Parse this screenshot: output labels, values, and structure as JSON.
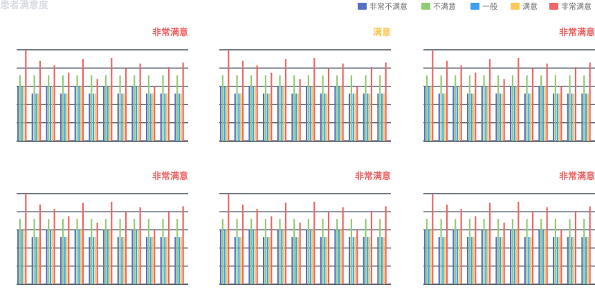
{
  "chart_title": "患者满意度",
  "colors": {
    "grid": "#1f2f3f",
    "series": [
      "#5470c6",
      "#91cc75",
      "#3ba0f0",
      "#fac858",
      "#ee6666"
    ]
  },
  "chart_data": {
    "type": "bar",
    "title": "患者满意度",
    "legend_position": "top-right",
    "grid": true,
    "series": [
      {
        "name": "非常不满意",
        "values": [
          60,
          52,
          60,
          52,
          60,
          52,
          60,
          52,
          60,
          52,
          52,
          52
        ]
      },
      {
        "name": "不满意",
        "values": [
          72,
          72,
          72,
          72,
          72,
          72,
          72,
          72,
          72,
          72,
          72,
          72
        ]
      },
      {
        "name": "一般",
        "values": [
          60,
          52,
          60,
          52,
          60,
          52,
          60,
          52,
          60,
          52,
          52,
          52
        ]
      },
      {
        "name": "满意",
        "values": [
          60,
          52,
          60,
          52,
          60,
          52,
          60,
          52,
          60,
          52,
          52,
          52
        ]
      },
      {
        "name": "非常满意",
        "values": [
          100,
          88,
          83,
          75,
          90,
          68,
          91,
          80,
          85,
          60,
          81,
          86
        ]
      }
    ],
    "panels": [
      {
        "label": "非常满意",
        "label_color": "#ee6666"
      },
      {
        "label": "满意",
        "label_color": "#fac858"
      },
      {
        "label": "非常满意",
        "label_color": "#ee6666"
      },
      {
        "label": "非常满意",
        "label_color": "#ee6666"
      },
      {
        "label": "非常满意",
        "label_color": "#ee6666"
      },
      {
        "label": "非常满意",
        "label_color": "#ee6666"
      }
    ]
  }
}
